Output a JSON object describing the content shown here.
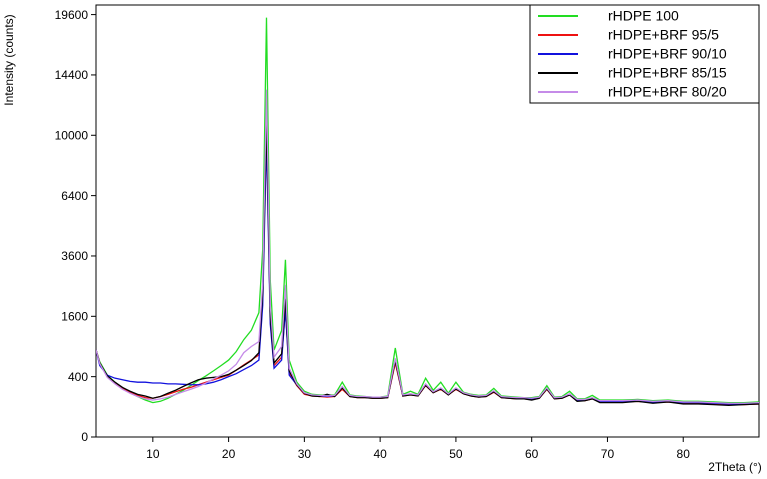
{
  "chart_data": {
    "type": "line",
    "ylabel": "Intensity (counts)",
    "xlabel": "2Theta (°)",
    "yscale": "sqrt",
    "xlim": [
      2.5,
      90
    ],
    "ylim": [
      0,
      20500
    ],
    "xticks": [
      10,
      20,
      30,
      40,
      50,
      60,
      70,
      80
    ],
    "yticks": [
      0,
      400,
      1600,
      3600,
      6400,
      10000,
      14400,
      19600
    ],
    "legend": "upper right",
    "x": [
      2.5,
      3,
      4,
      5,
      6,
      7,
      8,
      9,
      10,
      11,
      12,
      13,
      14,
      15,
      16,
      17,
      18,
      19,
      20,
      21,
      22,
      23,
      24,
      24.5,
      25,
      25.5,
      26,
      27,
      27.5,
      28,
      29,
      30,
      31,
      32,
      33,
      34,
      35,
      36,
      37,
      38,
      39,
      40,
      41,
      42,
      43,
      44,
      45,
      46,
      47,
      48,
      49,
      50,
      51,
      52,
      53,
      54,
      55,
      56,
      57,
      58,
      59,
      60,
      61,
      62,
      63,
      64,
      65,
      66,
      67,
      68,
      69,
      70,
      72,
      74,
      76,
      78,
      80,
      82,
      84,
      86,
      88,
      90
    ],
    "series": [
      {
        "name": "rHDPE 100",
        "color": "#22dd22",
        "values": [
          835,
          620,
          420,
          330,
          260,
          215,
          180,
          150,
          130,
          140,
          165,
          200,
          240,
          290,
          350,
          410,
          480,
          560,
          650,
          800,
          1040,
          1250,
          1700,
          3850,
          19320,
          2700,
          830,
          1250,
          3450,
          650,
          330,
          230,
          200,
          195,
          190,
          195,
          330,
          195,
          185,
          180,
          175,
          175,
          185,
          870,
          200,
          230,
          200,
          380,
          240,
          330,
          210,
          330,
          220,
          200,
          190,
          195,
          260,
          185,
          180,
          175,
          170,
          170,
          180,
          290,
          175,
          180,
          230,
          160,
          160,
          190,
          150,
          150,
          150,
          155,
          145,
          150,
          140,
          140,
          135,
          130,
          130,
          135
        ]
      },
      {
        "name": "rHDPE+BRF 95/5",
        "color": "#ee1111",
        "values": [
          835,
          600,
          400,
          320,
          260,
          220,
          190,
          170,
          165,
          180,
          200,
          225,
          250,
          270,
          300,
          330,
          360,
          390,
          420,
          490,
          570,
          650,
          740,
          2100,
          12500,
          1500,
          560,
          700,
          1800,
          450,
          290,
          200,
          185,
          180,
          175,
          180,
          250,
          180,
          170,
          170,
          165,
          165,
          170,
          600,
          185,
          195,
          185,
          290,
          215,
          250,
          195,
          250,
          205,
          185,
          175,
          180,
          220,
          170,
          165,
          160,
          160,
          155,
          165,
          250,
          160,
          165,
          195,
          145,
          145,
          160,
          135,
          135,
          135,
          140,
          130,
          135,
          125,
          125,
          120,
          115,
          115,
          120
        ]
      },
      {
        "name": "rHDPE+BRF 90/10",
        "color": "#1111dd",
        "values": [
          835,
          560,
          420,
          380,
          360,
          340,
          330,
          330,
          320,
          320,
          310,
          310,
          305,
          300,
          300,
          310,
          330,
          360,
          400,
          440,
          500,
          560,
          650,
          1900,
          9700,
          1400,
          520,
          650,
          1780,
          420,
          300,
          210,
          190,
          185,
          180,
          185,
          270,
          185,
          175,
          175,
          170,
          170,
          175,
          650,
          190,
          200,
          190,
          300,
          220,
          260,
          200,
          260,
          210,
          190,
          180,
          185,
          230,
          175,
          170,
          165,
          165,
          160,
          170,
          260,
          165,
          170,
          200,
          150,
          150,
          165,
          140,
          140,
          140,
          145,
          135,
          140,
          130,
          130,
          125,
          120,
          120,
          125
        ]
      },
      {
        "name": "rHDPE+BRF 85/15",
        "color": "#000000",
        "values": [
          835,
          600,
          410,
          330,
          270,
          230,
          200,
          185,
          165,
          180,
          210,
          240,
          280,
          320,
          360,
          380,
          390,
          400,
          430,
          490,
          560,
          640,
          780,
          2300,
          11000,
          1600,
          600,
          760,
          2100,
          480,
          300,
          210,
          185,
          180,
          200,
          180,
          265,
          180,
          170,
          170,
          165,
          165,
          170,
          640,
          185,
          195,
          185,
          295,
          215,
          255,
          195,
          255,
          205,
          185,
          175,
          180,
          225,
          170,
          165,
          160,
          160,
          150,
          165,
          255,
          160,
          165,
          195,
          140,
          145,
          160,
          130,
          130,
          130,
          140,
          125,
          135,
          120,
          120,
          115,
          110,
          115,
          120
        ]
      },
      {
        "name": "rHDPE+BRF 80/20",
        "color": "#c58be8",
        "values": [
          835,
          590,
          390,
          310,
          250,
          210,
          180,
          160,
          150,
          160,
          175,
          200,
          225,
          250,
          280,
          320,
          370,
          420,
          480,
          580,
          780,
          900,
          1000,
          2600,
          13250,
          1900,
          700,
          900,
          2540,
          520,
          310,
          215,
          195,
          190,
          185,
          190,
          280,
          190,
          180,
          180,
          175,
          175,
          180,
          680,
          195,
          205,
          195,
          310,
          225,
          265,
          205,
          265,
          215,
          195,
          185,
          190,
          235,
          180,
          175,
          170,
          170,
          165,
          175,
          265,
          170,
          175,
          205,
          155,
          155,
          170,
          145,
          145,
          145,
          150,
          140,
          145,
          135,
          135,
          130,
          125,
          125,
          130
        ]
      }
    ]
  }
}
